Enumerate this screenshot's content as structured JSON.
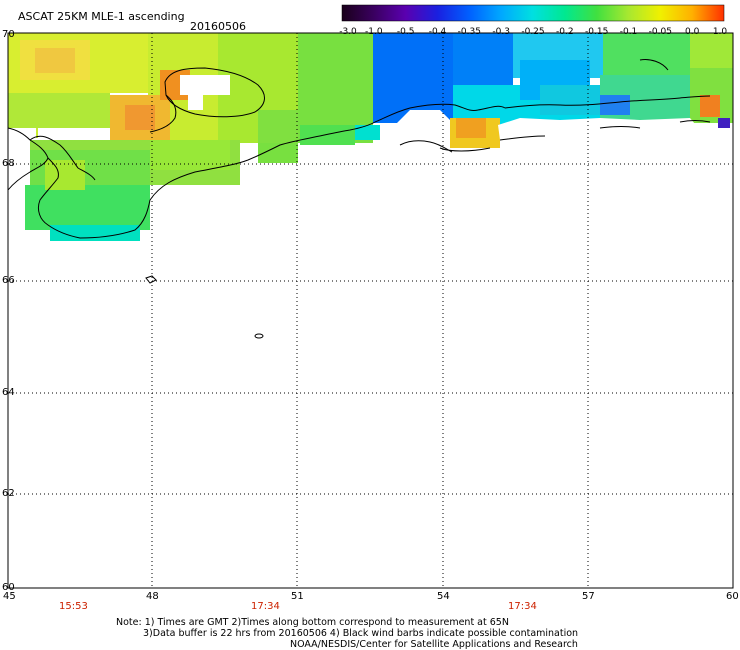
{
  "header": {
    "title": "ASCAT 25KM MLE-1 ascending",
    "date": "20160506"
  },
  "colorbar": {
    "ticks": [
      "-3.0",
      "-1.0",
      "-0.5",
      "-0.4",
      "-0.35",
      "-0.3",
      "-0.25",
      "-0.2",
      "-0.15",
      "-0.1",
      "-0.05",
      "0.0",
      "1.0"
    ],
    "colors": [
      "#1a001a",
      "#3a0060",
      "#5a00b0",
      "#1a20e0",
      "#0060ff",
      "#00a8ff",
      "#00e0e0",
      "#00e890",
      "#40e040",
      "#a8e830",
      "#f0f000",
      "#ffb000",
      "#ff3000"
    ]
  },
  "axes": {
    "lat_labels": [
      "70",
      "68",
      "66",
      "64",
      "62",
      "60"
    ],
    "lon_labels": [
      "45",
      "48",
      "51",
      "54",
      "57",
      "60"
    ]
  },
  "times": [
    "15:53",
    "17:34",
    "17:34"
  ],
  "notes": {
    "line1": "Note: 1) Times are GMT 2)Times along bottom correspond to measurement at 65N",
    "line2": "3)Data buffer is 22 hrs from 20160506 4) Black wind barbs indicate possible contamination",
    "line3": "NOAA/NESDIS/Center for Satellite Applications and Research"
  },
  "colors": {
    "time_label": "#cc2200",
    "grid": "#000000",
    "background": "#ffffff"
  }
}
